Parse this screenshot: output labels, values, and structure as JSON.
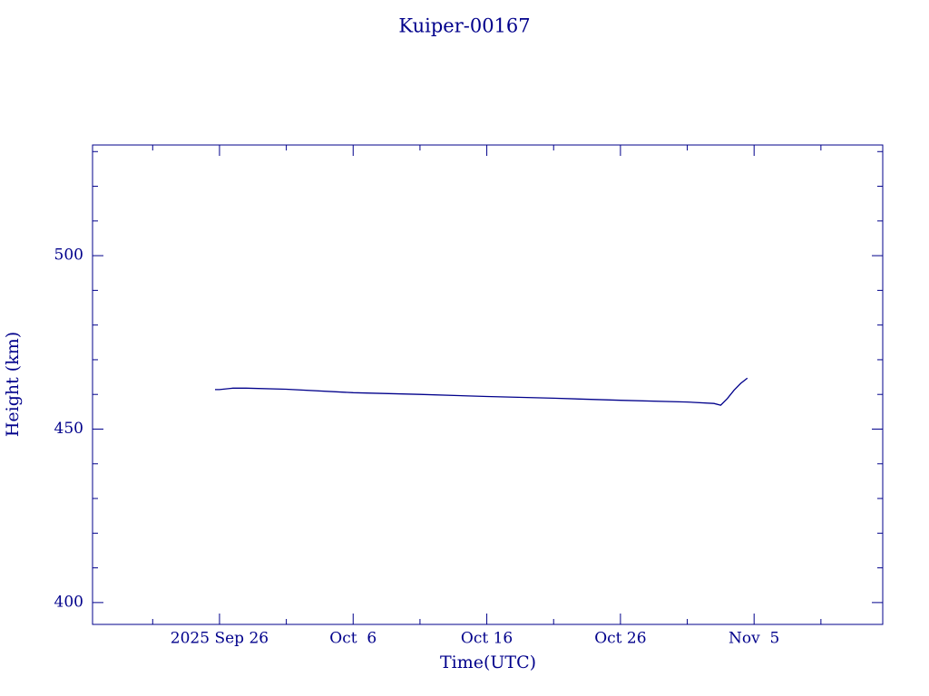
{
  "chart_data": {
    "type": "line",
    "title": "Kuiper-00167",
    "xlabel": "Time(UTC)",
    "ylabel": "Height (km)",
    "x": [
      "2025-09-25T16:00Z",
      "2025-09-26T00:00Z",
      "2025-09-27T00:00Z",
      "2025-09-28T00:00Z",
      "2025-10-01T00:00Z",
      "2025-10-06T00:00Z",
      "2025-10-11T00:00Z",
      "2025-10-16T00:00Z",
      "2025-10-21T00:00Z",
      "2025-10-26T00:00Z",
      "2025-10-31T00:00Z",
      "2025-11-02T00:00Z",
      "2025-11-02T12:00Z",
      "2025-11-03T00:00Z",
      "2025-11-03T12:00Z",
      "2025-11-04T00:00Z",
      "2025-11-04T12:00Z"
    ],
    "series": [
      {
        "name": "Height",
        "color": "#00008b",
        "values": [
          461.4,
          461.4,
          461.8,
          461.8,
          461.5,
          460.5,
          460.0,
          459.4,
          458.9,
          458.3,
          457.8,
          457.4,
          456.9,
          458.8,
          461.2,
          463.2,
          464.7
        ]
      }
    ],
    "xlim": [
      "2025-09-16T12:00Z",
      "2025-11-14T15:00Z"
    ],
    "xticks": [
      {
        "value": "2025-09-26T00:00Z",
        "label": "2025 Sep 26"
      },
      {
        "value": "2025-10-06T00:00Z",
        "label": "Oct  6"
      },
      {
        "value": "2025-10-16T00:00Z",
        "label": "Oct 16"
      },
      {
        "value": "2025-10-26T00:00Z",
        "label": "Oct 26"
      },
      {
        "value": "2025-11-05T00:00Z",
        "label": "Nov  5"
      }
    ],
    "xminor_ticks": [
      "2025-09-21T00:00Z",
      "2025-10-01T00:00Z",
      "2025-10-11T00:00Z",
      "2025-10-21T00:00Z",
      "2025-10-31T00:00Z",
      "2025-11-10T00:00Z"
    ],
    "ylim": [
      393.7,
      531.9
    ],
    "yticks": [
      400,
      450,
      500
    ],
    "yminor_ticks": [
      410,
      420,
      430,
      440,
      460,
      470,
      480,
      490,
      510,
      520,
      530
    ]
  }
}
